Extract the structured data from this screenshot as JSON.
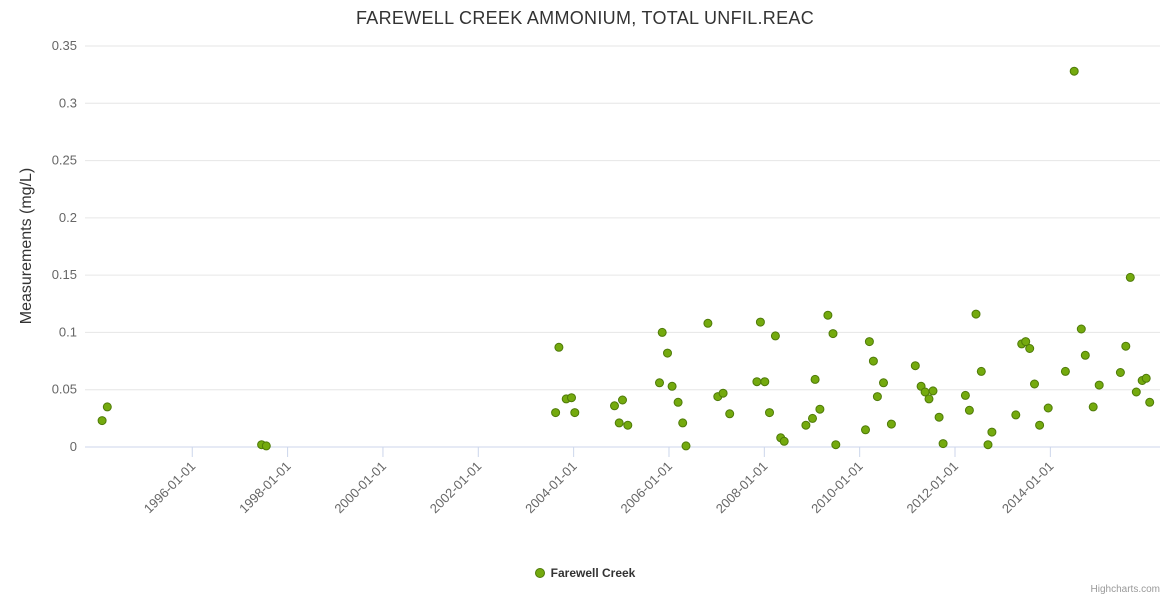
{
  "title": "FAREWELL CREEK AMMONIUM, TOTAL UNFIL.REAC",
  "credits": "Highcharts.com",
  "legend": {
    "label": "Farewell Creek"
  },
  "colors": {
    "point_fill": "#74aa0e",
    "point_stroke": "#4e7a08",
    "grid": "#e6e6e6",
    "axis_line": "#ccd6eb",
    "title_text": "#333333",
    "label_text": "#666666"
  },
  "chart_data": {
    "type": "scatter",
    "title": "FAREWELL CREEK AMMONIUM, TOTAL UNFIL.REAC",
    "xlabel": "",
    "ylabel": "Measurements (mg/L)",
    "ylim": [
      0,
      0.35
    ],
    "y_tick_values": [
      0,
      0.05,
      0.1,
      0.15,
      0.2,
      0.25,
      0.3,
      0.35
    ],
    "y_tick_labels": [
      "0",
      "0.05",
      "0.1",
      "0.15",
      "0.2",
      "0.25",
      "0.3",
      "0.35"
    ],
    "x_tick_values": [
      1996,
      1998,
      2000,
      2002,
      2004,
      2006,
      2008,
      2010,
      2012,
      2014
    ],
    "x_tick_labels": [
      "1996-01-01",
      "1998-01-01",
      "2000-01-01",
      "2002-01-01",
      "2004-01-01",
      "2006-01-01",
      "2008-01-01",
      "2010-01-01",
      "2012-01-01",
      "2014-01-01"
    ],
    "xlim_decimal_years": [
      1993.75,
      2016.3
    ],
    "grid": "horizontal",
    "legend_position": "bottom-center",
    "series": [
      {
        "name": "Farewell Creek",
        "points": [
          [
            "1994-02-10",
            0.023
          ],
          [
            "1994-03-20",
            0.035
          ],
          [
            "1997-06-15",
            0.002
          ],
          [
            "1997-07-20",
            0.001
          ],
          [
            "2003-08-15",
            0.03
          ],
          [
            "2003-09-10",
            0.087
          ],
          [
            "2003-11-05",
            0.042
          ],
          [
            "2003-12-15",
            0.043
          ],
          [
            "2004-01-10",
            0.03
          ],
          [
            "2004-11-10",
            0.036
          ],
          [
            "2004-12-15",
            0.021
          ],
          [
            "2005-01-10",
            0.041
          ],
          [
            "2005-02-20",
            0.019
          ],
          [
            "2005-10-20",
            0.056
          ],
          [
            "2005-11-10",
            0.1
          ],
          [
            "2005-12-20",
            0.082
          ],
          [
            "2006-01-25",
            0.053
          ],
          [
            "2006-03-10",
            0.039
          ],
          [
            "2006-04-15",
            0.021
          ],
          [
            "2006-05-10",
            0.001
          ],
          [
            "2006-10-25",
            0.108
          ],
          [
            "2007-01-10",
            0.044
          ],
          [
            "2007-02-20",
            0.047
          ],
          [
            "2007-04-10",
            0.029
          ],
          [
            "2007-11-05",
            0.057
          ],
          [
            "2007-12-01",
            0.109
          ],
          [
            "2008-01-05",
            0.057
          ],
          [
            "2008-02-10",
            0.03
          ],
          [
            "2008-03-25",
            0.097
          ],
          [
            "2008-05-05",
            0.008
          ],
          [
            "2008-06-01",
            0.005
          ],
          [
            "2008-11-15",
            0.019
          ],
          [
            "2009-01-05",
            0.025
          ],
          [
            "2009-01-25",
            0.059
          ],
          [
            "2009-03-01",
            0.033
          ],
          [
            "2009-05-01",
            0.115
          ],
          [
            "2009-06-10",
            0.099
          ],
          [
            "2009-07-01",
            0.002
          ],
          [
            "2010-02-15",
            0.015
          ],
          [
            "2010-03-15",
            0.092
          ],
          [
            "2010-04-15",
            0.075
          ],
          [
            "2010-05-15",
            0.044
          ],
          [
            "2010-07-01",
            0.056
          ],
          [
            "2010-09-01",
            0.02
          ],
          [
            "2011-03-01",
            0.071
          ],
          [
            "2011-04-15",
            0.053
          ],
          [
            "2011-05-15",
            0.048
          ],
          [
            "2011-06-15",
            0.042
          ],
          [
            "2011-07-15",
            0.049
          ],
          [
            "2011-09-01",
            0.026
          ],
          [
            "2011-10-01",
            0.003
          ],
          [
            "2012-03-20",
            0.045
          ],
          [
            "2012-04-20",
            0.032
          ],
          [
            "2012-06-10",
            0.116
          ],
          [
            "2012-07-20",
            0.066
          ],
          [
            "2012-09-10",
            0.002
          ],
          [
            "2012-10-10",
            0.013
          ],
          [
            "2013-04-10",
            0.028
          ],
          [
            "2013-05-25",
            0.09
          ],
          [
            "2013-06-25",
            0.092
          ],
          [
            "2013-07-25",
            0.086
          ],
          [
            "2013-09-01",
            0.055
          ],
          [
            "2013-10-10",
            0.019
          ],
          [
            "2013-12-15",
            0.034
          ],
          [
            "2014-04-25",
            0.066
          ],
          [
            "2014-07-01",
            0.328
          ],
          [
            "2014-08-25",
            0.103
          ],
          [
            "2014-09-25",
            0.08
          ],
          [
            "2014-11-25",
            0.035
          ],
          [
            "2015-01-10",
            0.054
          ],
          [
            "2015-06-20",
            0.065
          ],
          [
            "2015-08-01",
            0.088
          ],
          [
            "2015-09-05",
            0.148
          ],
          [
            "2015-10-20",
            0.048
          ],
          [
            "2015-12-05",
            0.058
          ],
          [
            "2016-01-05",
            0.06
          ],
          [
            "2016-02-01",
            0.039
          ]
        ]
      }
    ]
  }
}
